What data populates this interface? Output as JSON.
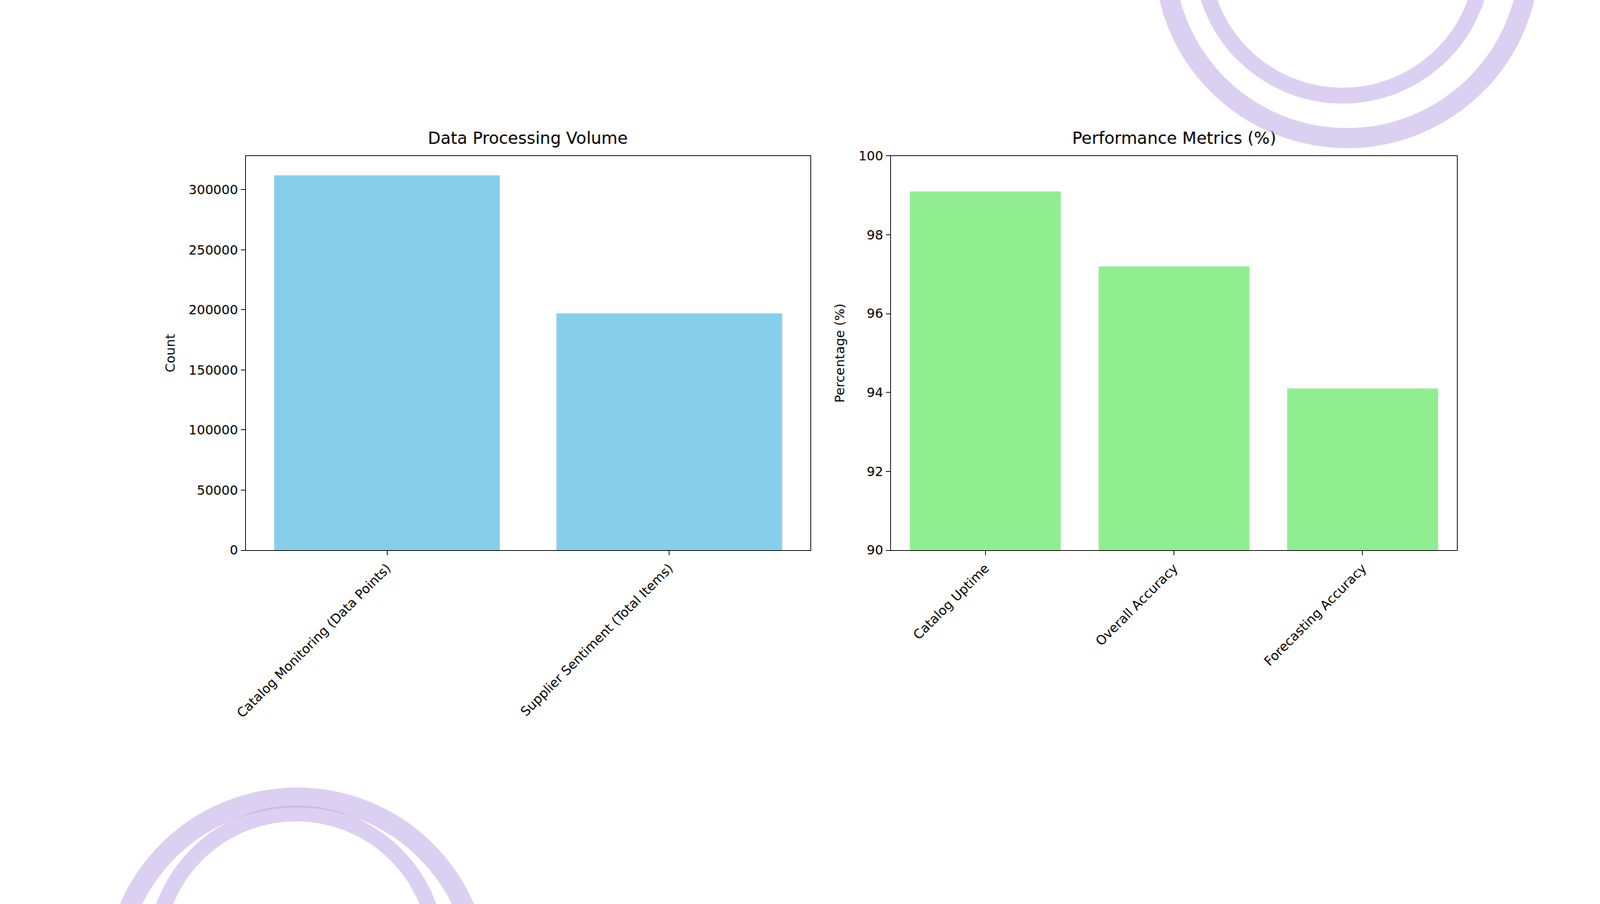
{
  "chart_data": [
    {
      "type": "bar",
      "title": "Data Processing Volume",
      "y_label": "Count",
      "categories": [
        "Catalog Monitoring (Data Points)",
        "Supplier Sentiment (Total Items)"
      ],
      "values": [
        312000,
        197000
      ],
      "color": "#87ceeb",
      "ylim": [
        0,
        328000
      ],
      "yticks": [
        0,
        50000,
        100000,
        150000,
        200000,
        250000,
        300000
      ],
      "grid": false
    },
    {
      "type": "bar",
      "title": "Performance Metrics (%)",
      "y_label": "Percentage (%)",
      "categories": [
        "Catalog Uptime",
        "Overall Accuracy",
        "Forecasting Accuracy"
      ],
      "values": [
        99.1,
        97.2,
        94.1
      ],
      "color": "#90ee90",
      "ylim": [
        90,
        100
      ],
      "yticks": [
        90,
        92,
        94,
        96,
        98,
        100
      ],
      "grid": false
    }
  ]
}
